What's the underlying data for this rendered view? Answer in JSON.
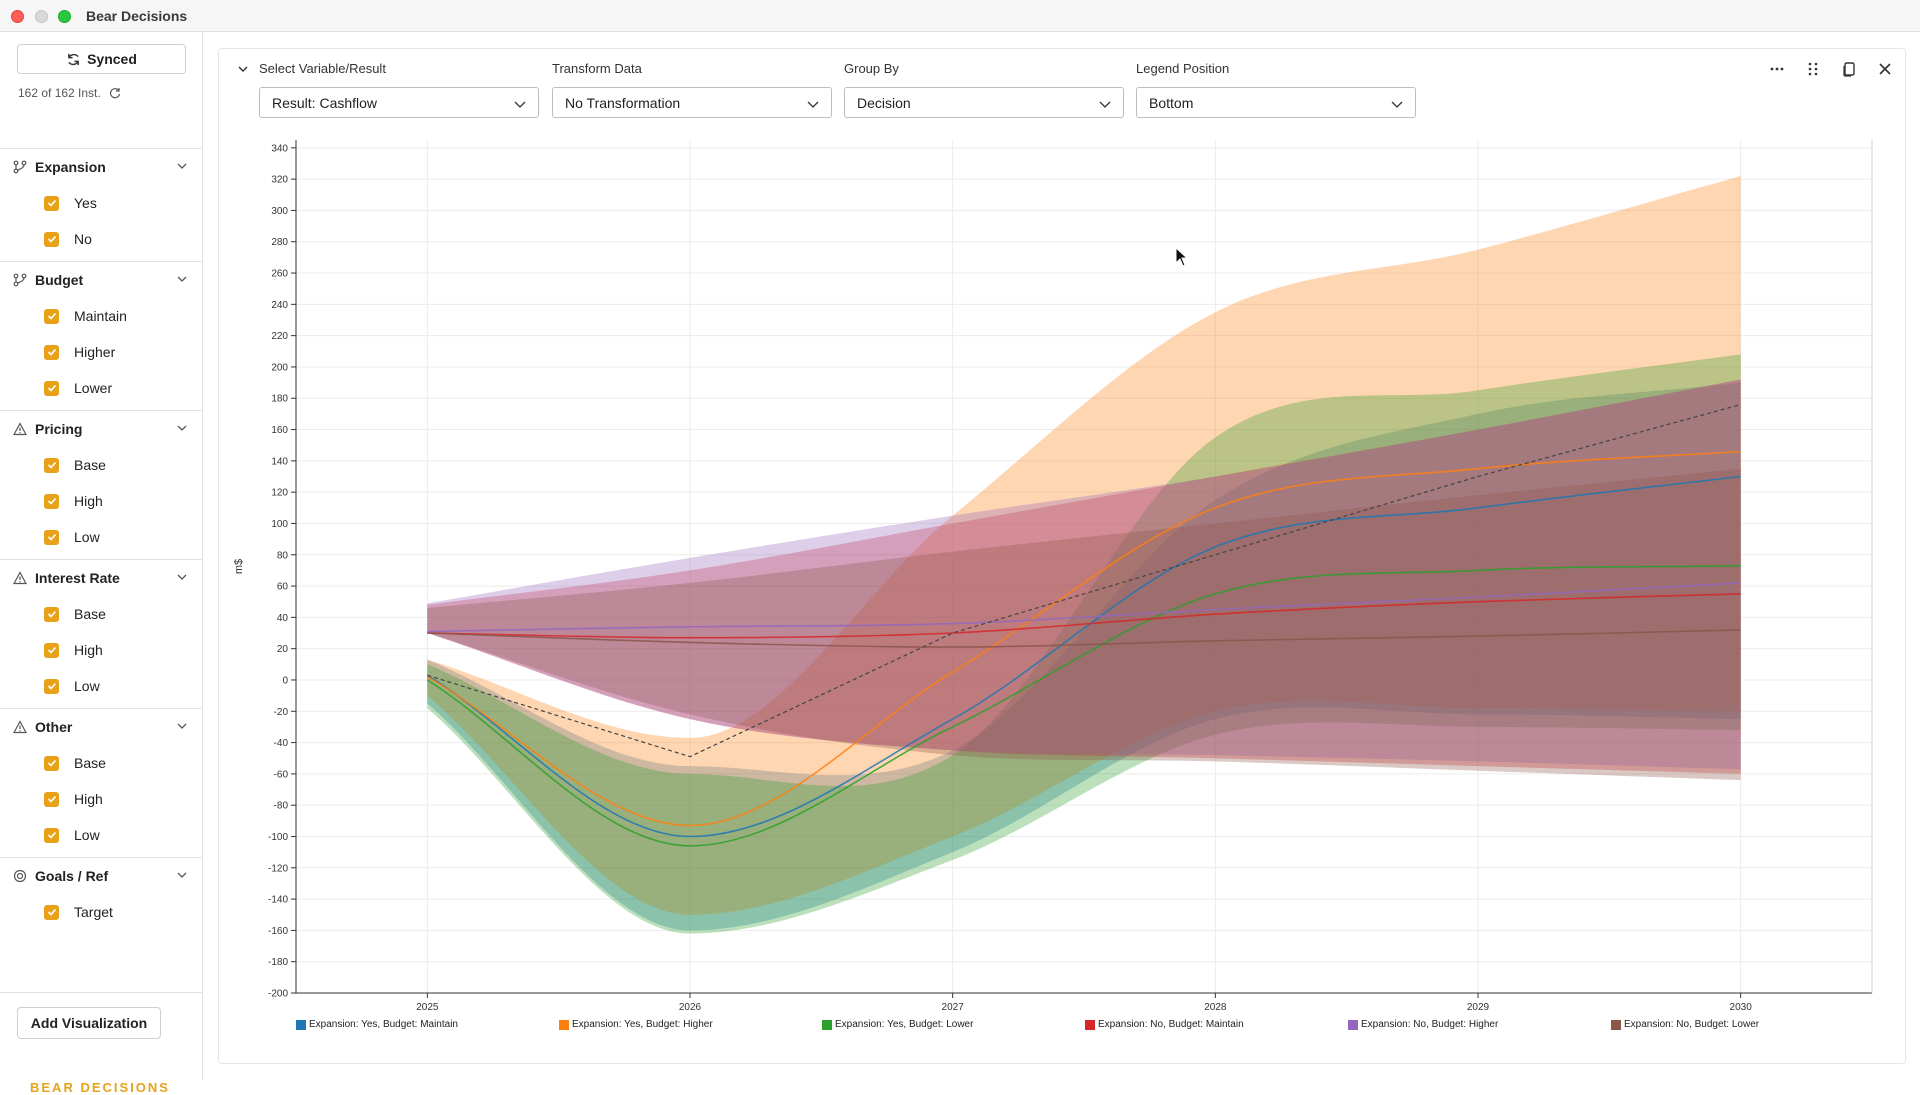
{
  "window": {
    "title": "Bear Decisions"
  },
  "sidebar": {
    "sync_label": "Synced",
    "instances": "162 of 162 Inst.",
    "groups": [
      {
        "label": "Expansion",
        "icon": "branch-icon",
        "options": [
          "Yes",
          "No"
        ]
      },
      {
        "label": "Budget",
        "icon": "branch-icon",
        "options": [
          "Maintain",
          "Higher",
          "Lower"
        ]
      },
      {
        "label": "Pricing",
        "icon": "warning-icon",
        "options": [
          "Base",
          "High",
          "Low"
        ]
      },
      {
        "label": "Interest Rate",
        "icon": "warning-icon",
        "options": [
          "Base",
          "High",
          "Low"
        ]
      },
      {
        "label": "Other",
        "icon": "warning-icon",
        "options": [
          "Base",
          "High",
          "Low"
        ]
      },
      {
        "label": "Goals / Ref",
        "icon": "target-icon",
        "options": [
          "Target"
        ]
      }
    ],
    "add_visualization": "Add Visualization",
    "brand": "BEAR DECISIONS"
  },
  "controls": {
    "variable": {
      "label": "Select Variable/Result",
      "value": "Result: Cashflow"
    },
    "transform": {
      "label": "Transform Data",
      "value": "No Transformation"
    },
    "group_by": {
      "label": "Group By",
      "value": "Decision"
    },
    "legend_position": {
      "label": "Legend Position",
      "value": "Bottom"
    }
  },
  "colors": {
    "accent": "#e8a21a",
    "axis": "#333333",
    "grid": "#ececec"
  },
  "chart_data": {
    "type": "area",
    "title": "",
    "xlabel": "",
    "ylabel": "m$",
    "x": [
      2025,
      2026,
      2027,
      2028,
      2029,
      2030
    ],
    "xlim": [
      2024.5,
      2030.5
    ],
    "ylim": [
      -200,
      345
    ],
    "yticks": [
      340,
      320,
      300,
      280,
      260,
      240,
      220,
      200,
      180,
      160,
      140,
      120,
      100,
      80,
      60,
      40,
      20,
      0,
      -20,
      -40,
      -60,
      -80,
      -100,
      -120,
      -140,
      -160,
      -180,
      -200
    ],
    "grid": true,
    "legend_position": "bottom",
    "series": [
      {
        "name": "Expansion: Yes, Budget: Maintain",
        "color": "#1f77b4",
        "median": [
          3,
          -100,
          -25,
          85,
          110,
          130
        ],
        "lower": [
          -15,
          -160,
          -110,
          -25,
          -22,
          -25
        ],
        "upper": [
          13,
          -55,
          -45,
          115,
          170,
          190
        ]
      },
      {
        "name": "Expansion: Yes, Budget: Higher",
        "color": "#ff7f0e",
        "median": [
          2,
          -93,
          5,
          110,
          135,
          146
        ],
        "lower": [
          -10,
          -150,
          -100,
          -20,
          -18,
          -20
        ],
        "upper": [
          13,
          -37,
          105,
          235,
          275,
          322
        ]
      },
      {
        "name": "Expansion: Yes, Budget: Lower",
        "color": "#2ca02c",
        "median": [
          0,
          -106,
          -30,
          55,
          70,
          73
        ],
        "lower": [
          -18,
          -162,
          -115,
          -35,
          -30,
          -32
        ],
        "upper": [
          10,
          -60,
          -48,
          155,
          185,
          208
        ]
      },
      {
        "name": "Expansion: No, Budget: Maintain",
        "color": "#d62728",
        "median": [
          30,
          27,
          30,
          42,
          50,
          55
        ],
        "lower": [
          30,
          -25,
          -45,
          -50,
          -55,
          -60
        ],
        "upper": [
          48,
          70,
          100,
          130,
          160,
          192
        ]
      },
      {
        "name": "Expansion: No, Budget: Higher",
        "color": "#9467bd",
        "median": [
          31,
          34,
          36,
          45,
          53,
          62
        ],
        "lower": [
          30,
          -25,
          -45,
          -48,
          -52,
          -57
        ],
        "upper": [
          49,
          78,
          105,
          130,
          160,
          192
        ]
      },
      {
        "name": "Expansion: No, Budget: Lower",
        "color": "#8c564b",
        "median": [
          30,
          24,
          21,
          25,
          28,
          32
        ],
        "lower": [
          30,
          -22,
          -48,
          -52,
          -58,
          -64
        ],
        "upper": [
          46,
          62,
          82,
          100,
          118,
          135
        ]
      }
    ],
    "target": {
      "name": "Target",
      "values": [
        3,
        -49,
        30,
        80,
        130,
        176
      ]
    }
  }
}
